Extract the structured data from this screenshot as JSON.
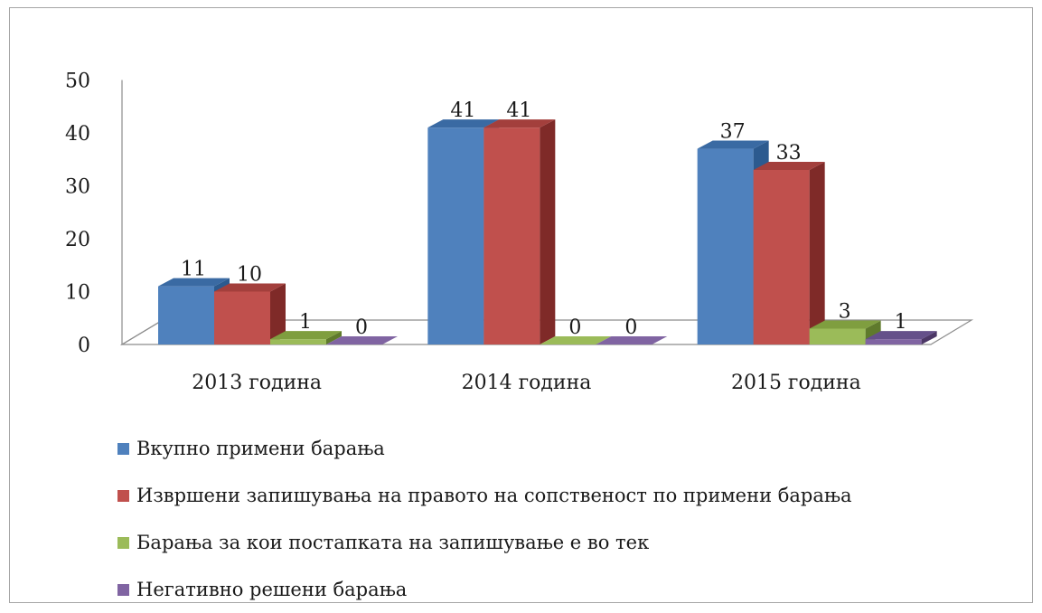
{
  "chart_data": {
    "type": "bar",
    "style": "3d-clustered",
    "categories": [
      "2013 година",
      "2014 година",
      "2015 година"
    ],
    "series": [
      {
        "name": "Вкупно примени барања",
        "values": [
          11,
          41,
          37
        ],
        "color": "#4f81bd",
        "side": "#2c5a8f",
        "top": "#3a6aa3"
      },
      {
        "name": "Извршени запишувања на правото на сопственост по примени барања",
        "values": [
          10,
          41,
          33
        ],
        "color": "#c0504d",
        "side": "#7f2a28",
        "top": "#a33f3c"
      },
      {
        "name": "Барања за кои постапката на запишување е во тек",
        "values": [
          1,
          0,
          3
        ],
        "color": "#9bbb59",
        "side": "#5f7a2c",
        "top": "#7f9e3f"
      },
      {
        "name": "Негативно решени барања",
        "values": [
          0,
          0,
          1
        ],
        "color": "#8064a2",
        "side": "#4c3766",
        "top": "#65508a"
      }
    ],
    "ylim": [
      0,
      50
    ],
    "yticks": [
      0,
      10,
      20,
      30,
      40,
      50
    ],
    "data_labels": true,
    "legend": "bottom-left",
    "grid": false
  }
}
